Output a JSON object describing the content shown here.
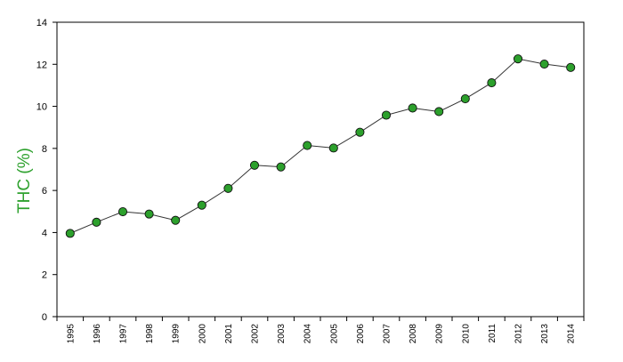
{
  "chart_data": {
    "type": "line",
    "title": "",
    "xlabel": "",
    "ylabel": "THC (%)",
    "ylabel_color": "#2ea12e",
    "ylim": [
      0,
      14
    ],
    "yticks": [
      0,
      2,
      4,
      6,
      8,
      10,
      12,
      14
    ],
    "grid": false,
    "x": [
      "1995",
      "1996",
      "1997",
      "1998",
      "1999",
      "2000",
      "2001",
      "2002",
      "2003",
      "2004",
      "2005",
      "2006",
      "2007",
      "2008",
      "2009",
      "2010",
      "2011",
      "2012",
      "2013",
      "2014"
    ],
    "series": [
      {
        "values": [
          3.96,
          4.49,
          4.99,
          4.88,
          4.58,
          5.3,
          6.1,
          7.2,
          7.12,
          8.14,
          8.02,
          8.77,
          9.58,
          9.92,
          9.75,
          10.36,
          11.12,
          12.26,
          12.01,
          11.85
        ],
        "marker_color": "#2ca02c",
        "line_color": "#333333"
      }
    ]
  }
}
